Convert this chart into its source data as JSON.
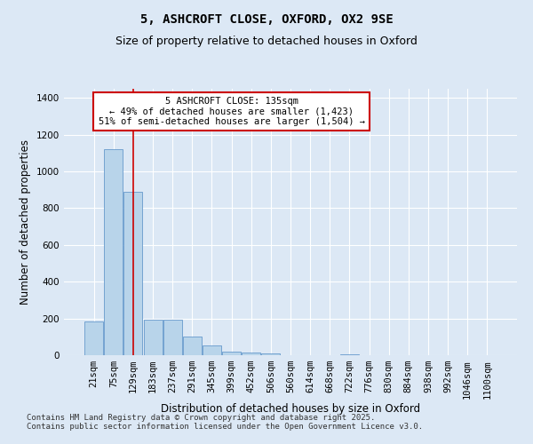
{
  "title_line1": "5, ASHCROFT CLOSE, OXFORD, OX2 9SE",
  "title_line2": "Size of property relative to detached houses in Oxford",
  "xlabel": "Distribution of detached houses by size in Oxford",
  "ylabel": "Number of detached properties",
  "background_color": "#dce8f5",
  "bar_color": "#b8d4ea",
  "bar_edge_color": "#6699cc",
  "vline_color": "#cc0000",
  "vline_index": 2,
  "annotation_title": "5 ASHCROFT CLOSE: 135sqm",
  "annotation_line2": "← 49% of detached houses are smaller (1,423)",
  "annotation_line3": "51% of semi-detached houses are larger (1,504) →",
  "annotation_box_color": "#ffffff",
  "annotation_border_color": "#cc0000",
  "categories": [
    "21sqm",
    "75sqm",
    "129sqm",
    "183sqm",
    "237sqm",
    "291sqm",
    "345sqm",
    "399sqm",
    "452sqm",
    "506sqm",
    "560sqm",
    "614sqm",
    "668sqm",
    "722sqm",
    "776sqm",
    "830sqm",
    "884sqm",
    "938sqm",
    "992sqm",
    "1046sqm",
    "1100sqm"
  ],
  "values": [
    185,
    1120,
    890,
    195,
    195,
    100,
    55,
    20,
    15,
    10,
    0,
    0,
    0,
    5,
    0,
    0,
    0,
    0,
    0,
    0,
    0
  ],
  "ylim": [
    0,
    1450
  ],
  "yticks": [
    0,
    200,
    400,
    600,
    800,
    1000,
    1200,
    1400
  ],
  "footer_line1": "Contains HM Land Registry data © Crown copyright and database right 2025.",
  "footer_line2": "Contains public sector information licensed under the Open Government Licence v3.0.",
  "title_fontsize": 10,
  "subtitle_fontsize": 9,
  "axis_label_fontsize": 8.5,
  "tick_fontsize": 7.5,
  "footer_fontsize": 6.5,
  "annotation_fontsize": 7.5
}
